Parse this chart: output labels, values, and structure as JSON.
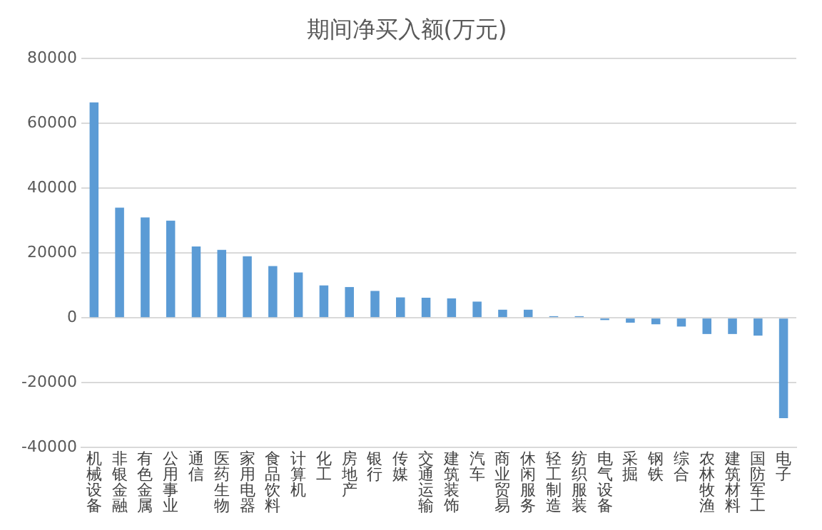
{
  "chart_data": {
    "type": "bar",
    "title": "期间净买入额(万元)",
    "categories": [
      "机械设备",
      "非银金融",
      "有色金属",
      "公用事业",
      "通信",
      "医药生物",
      "家用电器",
      "食品饮料",
      "计算机",
      "化工",
      "房地产",
      "银行",
      "传媒",
      "交通运输",
      "建筑装饰",
      "汽车",
      "商业贸易",
      "休闲服务",
      "轻工制造",
      "纺织服装",
      "电气设备",
      "采掘",
      "钢铁",
      "综合",
      "农林牧渔",
      "建筑材料",
      "国防军工",
      "电子"
    ],
    "values": [
      66500,
      34000,
      31000,
      30000,
      22000,
      21000,
      19000,
      16000,
      14000,
      10000,
      9500,
      8300,
      6300,
      6200,
      6000,
      5000,
      2500,
      2500,
      500,
      500,
      -700,
      -1500,
      -2000,
      -2700,
      -5000,
      -5000,
      -5500,
      -31000
    ],
    "color": "#5b9bd5",
    "ylim": [
      -40000,
      80000
    ],
    "yticks": [
      -40000,
      -20000,
      0,
      20000,
      40000,
      60000,
      80000
    ],
    "grid": "y",
    "legend": false
  }
}
